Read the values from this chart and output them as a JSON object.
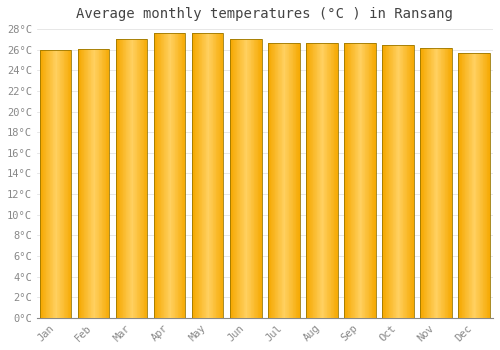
{
  "title": "Average monthly temperatures (°C ) in Ransang",
  "months": [
    "Jan",
    "Feb",
    "Mar",
    "Apr",
    "May",
    "Jun",
    "Jul",
    "Aug",
    "Sep",
    "Oct",
    "Nov",
    "Dec"
  ],
  "values": [
    26.0,
    26.1,
    27.0,
    27.6,
    27.6,
    27.0,
    26.6,
    26.6,
    26.6,
    26.5,
    26.2,
    25.7
  ],
  "ylim": [
    0,
    28
  ],
  "yticks": [
    0,
    2,
    4,
    6,
    8,
    10,
    12,
    14,
    16,
    18,
    20,
    22,
    24,
    26,
    28
  ],
  "bar_color_center": "#FFD060",
  "bar_color_edge": "#F5A800",
  "bar_outline": "#B8860B",
  "background_color": "#FFFFFF",
  "grid_color": "#DDDDDD",
  "title_fontsize": 10,
  "tick_fontsize": 7.5,
  "title_color": "#444444",
  "tick_color": "#888888",
  "bar_width": 0.82
}
